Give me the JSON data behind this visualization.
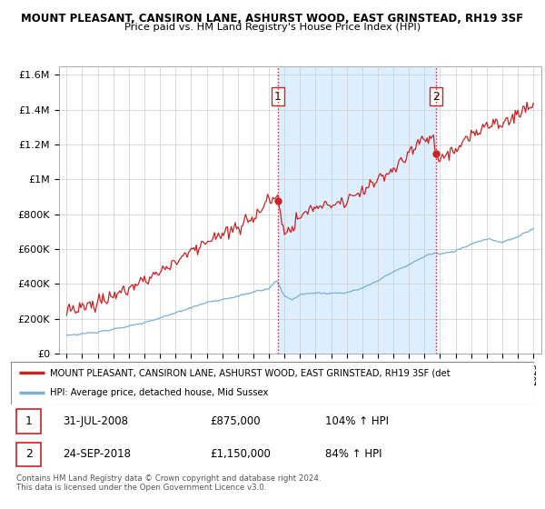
{
  "title1": "MOUNT PLEASANT, CANSIRON LANE, ASHURST WOOD, EAST GRINSTEAD, RH19 3SF",
  "title2": "Price paid vs. HM Land Registry's House Price Index (HPI)",
  "ylabel_ticks": [
    "£0",
    "£200K",
    "£400K",
    "£600K",
    "£800K",
    "£1M",
    "£1.2M",
    "£1.4M",
    "£1.6M"
  ],
  "ytick_values": [
    0,
    200000,
    400000,
    600000,
    800000,
    1000000,
    1200000,
    1400000,
    1600000
  ],
  "ylim": [
    0,
    1650000
  ],
  "xlim_start": 1994.5,
  "xlim_end": 2025.5,
  "red_line_color": "#cc2222",
  "blue_line_color": "#7ab0d4",
  "shade_color": "#ddeeff",
  "sale1_x": 2008.58,
  "sale1_y": 875000,
  "sale2_x": 2018.73,
  "sale2_y": 1150000,
  "sale1_label": "1",
  "sale2_label": "2",
  "legend_line1": "MOUNT PLEASANT, CANSIRON LANE, ASHURST WOOD, EAST GRINSTEAD, RH19 3SF (det",
  "legend_line2": "HPI: Average price, detached house, Mid Sussex",
  "table_row1_num": "1",
  "table_row1_date": "31-JUL-2008",
  "table_row1_price": "£875,000",
  "table_row1_hpi": "104% ↑ HPI",
  "table_row2_num": "2",
  "table_row2_date": "24-SEP-2018",
  "table_row2_price": "£1,150,000",
  "table_row2_hpi": "84% ↑ HPI",
  "footnote": "Contains HM Land Registry data © Crown copyright and database right 2024.\nThis data is licensed under the Open Government Licence v3.0.",
  "grid_color": "#cccccc",
  "background_color": "#ffffff"
}
